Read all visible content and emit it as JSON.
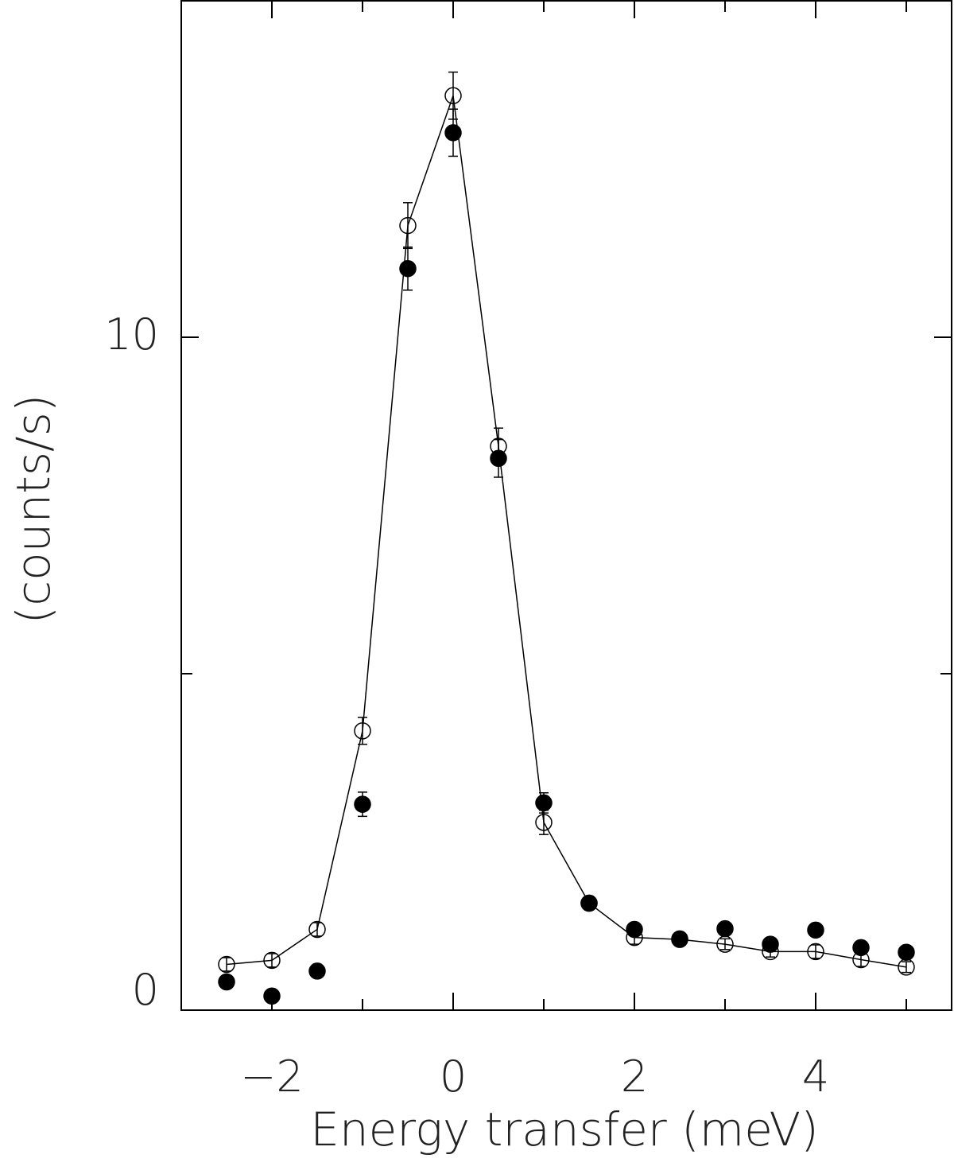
{
  "chart_data": {
    "type": "scatter",
    "x_label": "Energy transfer (meV)",
    "y_label": "(counts/s)",
    "xlim": [
      -3,
      5.5
    ],
    "xticks": [
      {
        "value": -2,
        "label": "−2"
      },
      0,
      2,
      4
    ],
    "xminor": [
      -1,
      1,
      3,
      5
    ],
    "ylim": [
      0,
      15
    ],
    "yticks": [
      0,
      10
    ],
    "yminor": [
      5
    ],
    "x": [
      -2.5,
      -2,
      -1.5,
      -1,
      -0.5,
      0,
      0.5,
      1,
      1.5,
      2,
      2.5,
      3,
      3.5,
      4,
      4.5,
      5
    ],
    "series": [
      {
        "color": "#000000",
        "marker": "open",
        "line": true,
        "values": [
          0.68,
          0.74,
          1.2,
          4.15,
          11.66,
          13.59,
          8.38,
          2.79,
          1.59,
          1.08,
          1.05,
          0.98,
          0.87,
          0.87,
          0.75,
          0.64
        ],
        "errors": [
          0.1,
          0.1,
          0.1,
          0.2,
          0.34,
          0.35,
          0.27,
          0.18,
          0.1,
          0.1,
          0.08,
          0.08,
          0.08,
          0.1,
          0.1,
          0.08
        ]
      },
      {
        "color": "#000000",
        "marker": "filled",
        "line": false,
        "values": [
          0.42,
          0.21,
          0.58,
          3.06,
          11.02,
          13.04,
          8.2,
          3.08,
          1.59,
          1.2,
          1.06,
          1.21,
          0.98,
          1.19,
          0.93,
          0.86
        ],
        "errors": [
          0.08,
          0.08,
          0.08,
          0.18,
          0.32,
          0.35,
          0.28,
          0.15,
          0.1,
          0.08,
          0.08,
          0.08,
          0.08,
          0.08,
          0.08,
          0.08
        ]
      }
    ]
  }
}
